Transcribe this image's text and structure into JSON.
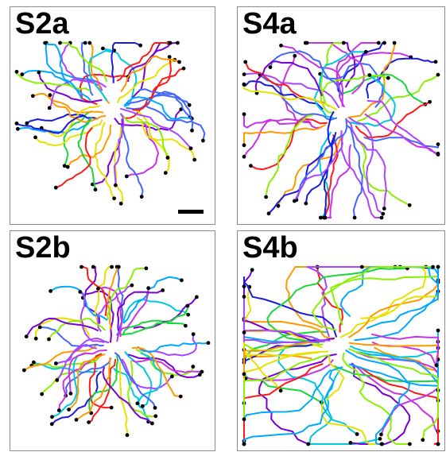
{
  "panels": [
    {
      "id": "s2a",
      "label": "S2a",
      "scale_bar": true
    },
    {
      "id": "s4a",
      "label": "S4a",
      "scale_bar": false
    },
    {
      "id": "s2b",
      "label": "S2b",
      "scale_bar": false
    },
    {
      "id": "s4b",
      "label": "S4b",
      "scale_bar": false
    }
  ],
  "colors": {
    "track_palette": [
      "#1a1adf",
      "#7a00d6",
      "#c833e6",
      "#00c8e0",
      "#19d63a",
      "#88f000",
      "#e8e000",
      "#ff9900",
      "#ff1a1a",
      "#4466ff",
      "#00a8ff",
      "#aa44ff"
    ],
    "endpoint": "#000000",
    "border": "#8c8c8c"
  }
}
